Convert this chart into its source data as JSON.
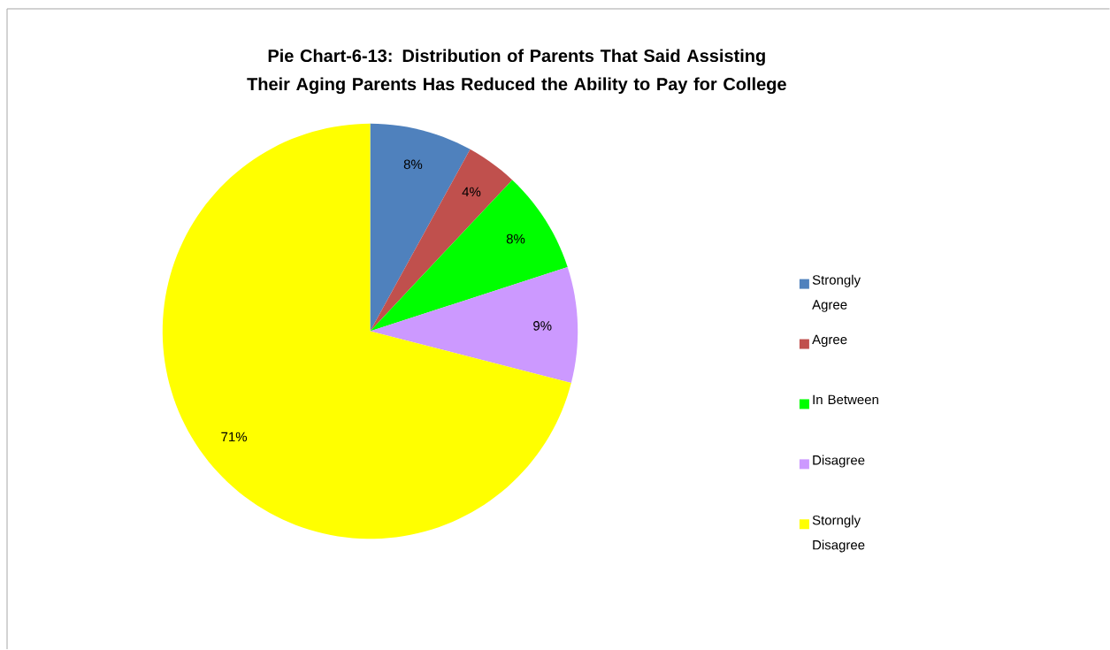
{
  "chart_data": {
    "type": "pie",
    "title": "Pie Chart-6-13: Distribution of Parents That Said Assisting Their Aging Parents Has Reduced the Ability to Pay for College",
    "categories": [
      "Strongly Agree",
      "Agree",
      "In Between",
      "Disagree",
      "Storngly Disagree"
    ],
    "values": [
      8,
      4,
      8,
      9,
      71
    ],
    "value_labels": [
      "8%",
      "4%",
      "8%",
      "9%",
      "71%"
    ],
    "colors": [
      "#4f81bd",
      "#c0504d",
      "#00ff00",
      "#cc99ff",
      "#ffff00"
    ],
    "legend": "right"
  }
}
